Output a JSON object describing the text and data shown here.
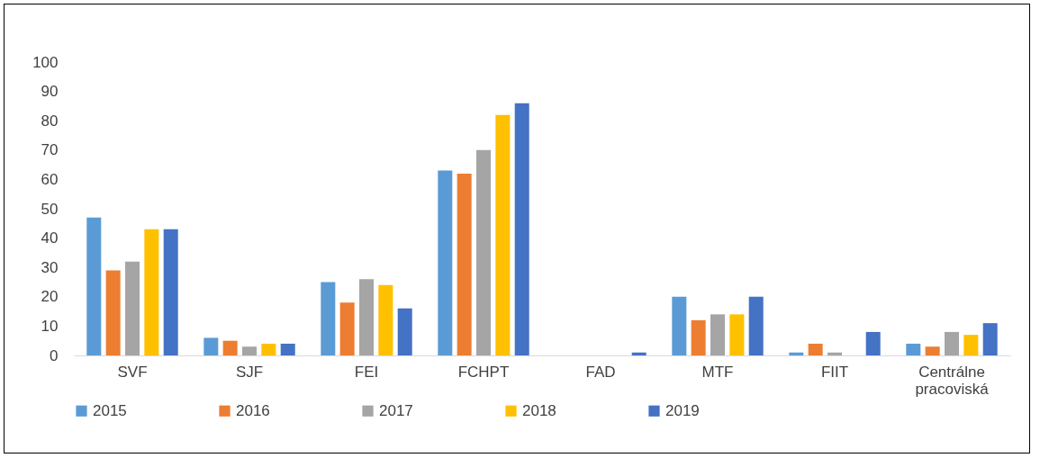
{
  "chart_data": {
    "type": "bar",
    "categories": [
      "SVF",
      "SJF",
      "FEI",
      "FCHPT",
      "FAD",
      "MTF",
      "FIIT",
      "Centrálne pracoviská"
    ],
    "series": [
      {
        "name": "2015",
        "color": "#5b9bd5",
        "values": [
          47,
          6,
          25,
          63,
          0,
          20,
          1,
          4
        ]
      },
      {
        "name": "2016",
        "color": "#ed7d31",
        "values": [
          29,
          5,
          18,
          62,
          0,
          12,
          4,
          3
        ]
      },
      {
        "name": "2017",
        "color": "#a5a5a5",
        "values": [
          32,
          3,
          26,
          70,
          0,
          14,
          1,
          8
        ]
      },
      {
        "name": "2018",
        "color": "#ffc000",
        "values": [
          43,
          4,
          24,
          82,
          0,
          14,
          0,
          7
        ]
      },
      {
        "name": "2019",
        "color": "#4472c4",
        "values": [
          43,
          4,
          16,
          86,
          1,
          20,
          8,
          11
        ]
      }
    ],
    "ylim": [
      0,
      100
    ],
    "yticks": [
      0,
      10,
      20,
      30,
      40,
      50,
      60,
      70,
      80,
      90,
      100
    ],
    "grid": false,
    "legend": "bottom"
  }
}
